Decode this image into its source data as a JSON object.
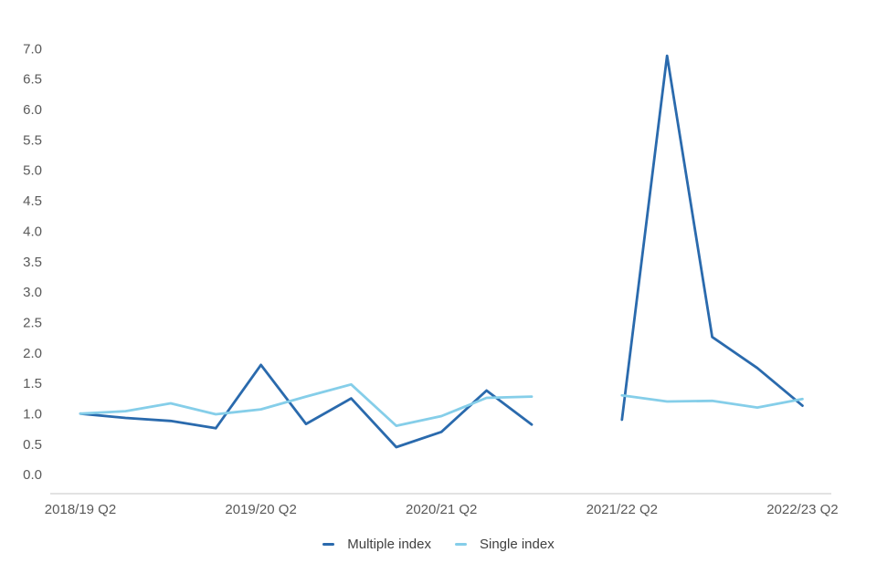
{
  "chart_data": {
    "type": "line",
    "title": "",
    "xlabel": "",
    "ylabel": "",
    "grid": false,
    "legend_position": "bottom",
    "ylim": [
      0.0,
      7.0
    ],
    "y_ticks": [
      "7.0",
      "6.5",
      "6.0",
      "5.5",
      "5.0",
      "4.5",
      "4.0",
      "3.5",
      "3.0",
      "2.5",
      "2.0",
      "1.5",
      "1.0",
      "0.5",
      "0.0"
    ],
    "x": [
      "2018/19 Q2",
      "2018/19 Q3",
      "2018/19 Q4",
      "2019/20 Q1",
      "2019/20 Q2",
      "2019/20 Q3",
      "2019/20 Q4",
      "2020/21 Q1",
      "2020/21 Q2",
      "2020/21 Q3",
      "2020/21 Q4",
      "2021/22 Q1",
      "2021/22 Q2",
      "2021/22 Q3",
      "2021/22 Q4",
      "2022/23 Q1",
      "2022/23 Q2"
    ],
    "x_tick_indices": [
      0,
      4,
      8,
      12,
      16
    ],
    "x_tick_labels": [
      "2018/19 Q2",
      "2019/20 Q2",
      "2020/21 Q2",
      "2021/22 Q2",
      "2022/23 Q2"
    ],
    "series": [
      {
        "name": "Multiple index",
        "color": "#2a6aad",
        "values": [
          1.0,
          0.93,
          0.88,
          0.76,
          1.8,
          0.83,
          1.25,
          0.45,
          0.7,
          1.38,
          0.82,
          null,
          0.9,
          6.88,
          2.26,
          1.75,
          1.13
        ]
      },
      {
        "name": "Single index",
        "color": "#85cee9",
        "values": [
          1.0,
          1.04,
          1.17,
          0.99,
          1.07,
          1.28,
          1.48,
          0.8,
          0.96,
          1.26,
          1.28,
          null,
          1.3,
          1.2,
          1.21,
          1.1,
          1.24
        ]
      }
    ],
    "colors": {
      "axis_line": "#d9d9d9",
      "tick_label": "#595959",
      "legend_text": "#404040",
      "background": "#ffffff"
    }
  }
}
